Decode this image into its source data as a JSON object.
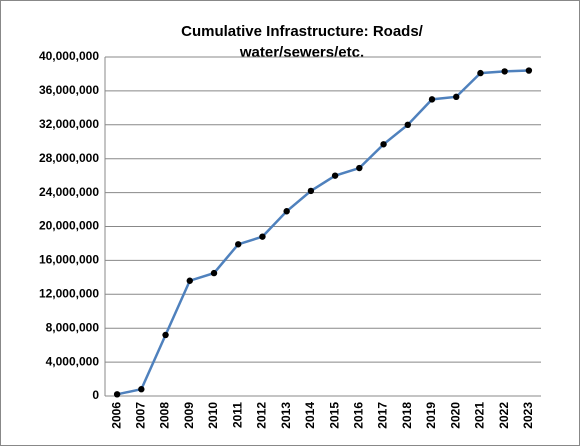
{
  "chart_data": {
    "type": "line",
    "title": [
      "Cumulative Infrastructure: Roads/",
      "water/sewers/etc."
    ],
    "categories": [
      "2006",
      "2007",
      "2008",
      "2009",
      "2010",
      "2011",
      "2012",
      "2013",
      "2014",
      "2015",
      "2016",
      "2017",
      "2018",
      "2019",
      "2020",
      "2021",
      "2022",
      "2023"
    ],
    "series": [
      {
        "color": "#4f81bd",
        "marker_color": "#000000",
        "values": [
          200000,
          800000,
          7200000,
          13600000,
          14500000,
          17900000,
          18800000,
          21800000,
          24200000,
          26000000,
          26900000,
          29700000,
          32000000,
          35000000,
          35300000,
          38100000,
          38300000,
          38400000
        ]
      }
    ],
    "ylim": [
      0,
      40000000
    ],
    "yticks": [
      0,
      {
        "value": 4000000,
        "label": "4,000,000"
      },
      {
        "value": 8000000,
        "label": "8,000,000"
      },
      {
        "value": 12000000,
        "label": "12,000,000"
      },
      {
        "value": 16000000,
        "label": "16,000,000"
      },
      {
        "value": 20000000,
        "label": "20,000,000"
      },
      {
        "value": 24000000,
        "label": "24,000,000"
      },
      {
        "value": 28000000,
        "label": "28,000,000"
      },
      {
        "value": 32000000,
        "label": "32,000,000"
      },
      {
        "value": 36000000,
        "label": "36,000,000"
      },
      {
        "value": 40000000,
        "label": "40,000,000"
      }
    ],
    "grid": true
  }
}
